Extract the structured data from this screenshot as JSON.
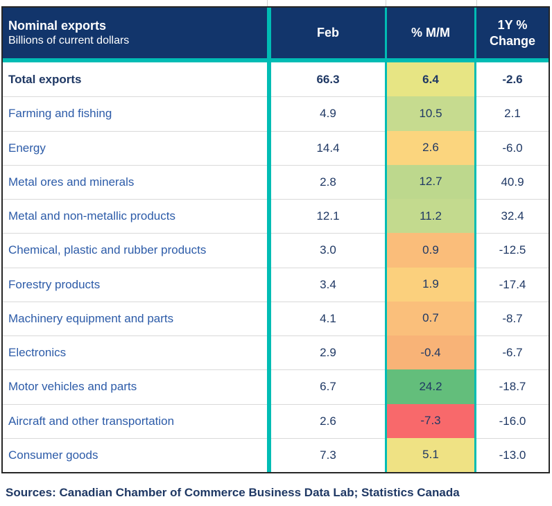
{
  "colors": {
    "header_bg": "#12356B",
    "accent_teal": "#00BCB4",
    "row_divider": "#D9D9D9",
    "label_blue": "#2C5BA8",
    "value_navy": "#1F3864",
    "outer_border": "#262626",
    "heatmap_min_red": "#F8696B",
    "heatmap_mid_yellow": "#FFEB84",
    "heatmap_max_green": "#63BE7B"
  },
  "header": {
    "title": "Nominal exports",
    "subtitle": "Billions of current dollars",
    "col_feb": "Feb",
    "col_mm": "% M/M",
    "col_yoy_line1": "1Y %",
    "col_yoy_line2": "Change"
  },
  "chart_data": {
    "type": "table",
    "title": "Nominal exports",
    "subtitle": "Billions of current dollars",
    "columns": [
      "Feb",
      "% M/M",
      "1Y % Change"
    ],
    "heatmap_column": "% M/M",
    "rows": [
      {
        "label": "Total exports",
        "feb": "66.3",
        "mm": "6.4",
        "yoy": "-2.6",
        "mm_color": "#E7E584"
      },
      {
        "label": "Farming and fishing",
        "feb": "4.9",
        "mm": "10.5",
        "yoy": "2.1",
        "mm_color": "#C6DB8F"
      },
      {
        "label": "Energy",
        "feb": "14.4",
        "mm": "2.6",
        "yoy": "-6.0",
        "mm_color": "#FBD57E"
      },
      {
        "label": "Metal ores and minerals",
        "feb": "2.8",
        "mm": "12.7",
        "yoy": "40.9",
        "mm_color": "#BDD88D"
      },
      {
        "label": "Metal and non-metallic products",
        "feb": "12.1",
        "mm": "11.2",
        "yoy": "32.4",
        "mm_color": "#C3DA8E"
      },
      {
        "label": "Chemical, plastic and rubber products",
        "feb": "3.0",
        "mm": "0.9",
        "yoy": "-12.5",
        "mm_color": "#FABD7A"
      },
      {
        "label": "Forestry products",
        "feb": "3.4",
        "mm": "1.9",
        "yoy": "-17.4",
        "mm_color": "#FBD07D"
      },
      {
        "label": "Machinery equipment and parts",
        "feb": "4.1",
        "mm": "0.7",
        "yoy": "-8.7",
        "mm_color": "#FABF7B"
      },
      {
        "label": "Electronics",
        "feb": "2.9",
        "mm": "-0.4",
        "yoy": "-6.7",
        "mm_color": "#F8B377"
      },
      {
        "label": "Motor vehicles and parts",
        "feb": "6.7",
        "mm": "24.2",
        "yoy": "-18.7",
        "mm_color": "#63BE7B"
      },
      {
        "label": "Aircraft and other transportation",
        "feb": "2.6",
        "mm": "-7.3",
        "yoy": "-16.0",
        "mm_color": "#F8696B"
      },
      {
        "label": "Consumer goods",
        "feb": "7.3",
        "mm": "5.1",
        "yoy": "-13.0",
        "mm_color": "#EFE284"
      }
    ],
    "source": "Sources: Canadian Chamber of Commerce Business Data Lab; Statistics Canada"
  }
}
